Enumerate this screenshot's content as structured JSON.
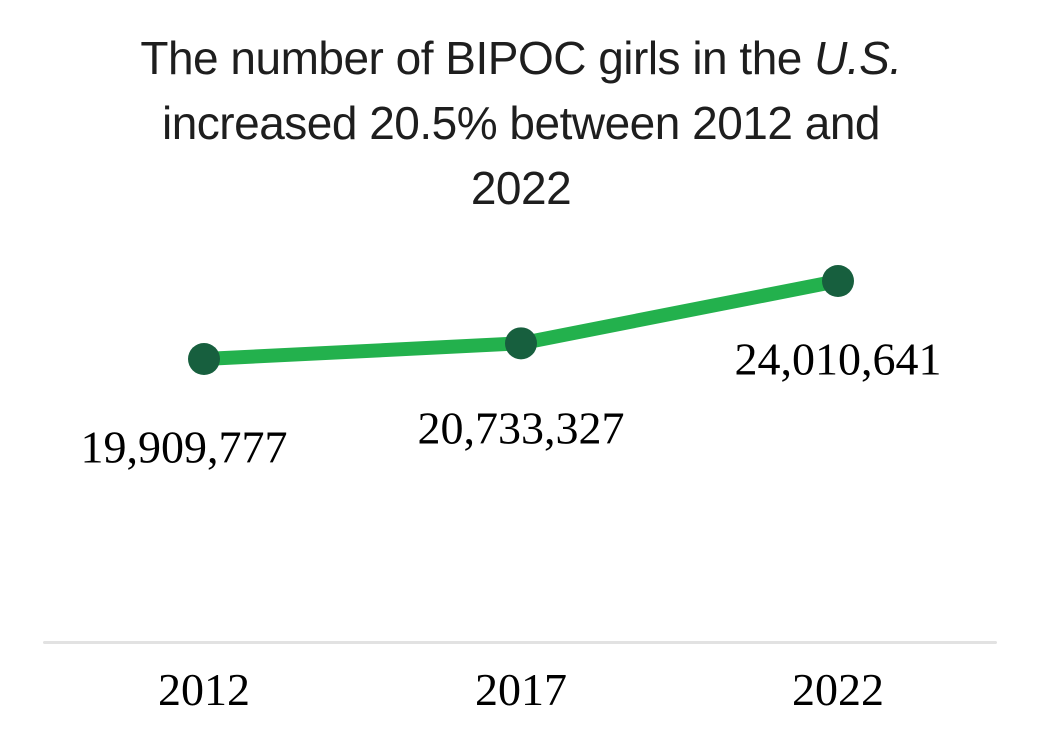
{
  "title": {
    "line1_regular": "The number of BIPOC girls in the ",
    "line1_italic": "U.S.",
    "line2": "increased 20.5% between 2012 and",
    "line3": "2022",
    "full_text": "The number of BIPOC girls in the U.S. increased 20.5% between 2012 and 2022"
  },
  "chart_data": {
    "type": "line",
    "categories": [
      "2012",
      "2017",
      "2022"
    ],
    "series": [
      {
        "name": "Number of BIPOC girls in the U.S.",
        "values": [
          19909777,
          20733327,
          24010641
        ]
      }
    ],
    "point_labels": [
      "19,909,777",
      "20,733,327",
      "24,010,641"
    ],
    "title": "The number of BIPOC girls in the U.S. increased 20.5% between 2012 and 2022",
    "xlabel": "",
    "ylabel": "",
    "legend": "none",
    "grid": false,
    "increase_percent": "20.5%",
    "colors": {
      "line": "#23b14d",
      "marker": "#175f3e",
      "axis_line": "#e2e2e2",
      "label_text": "#000000",
      "title_text": "#1e1e1e",
      "background": "#ffffff"
    }
  }
}
